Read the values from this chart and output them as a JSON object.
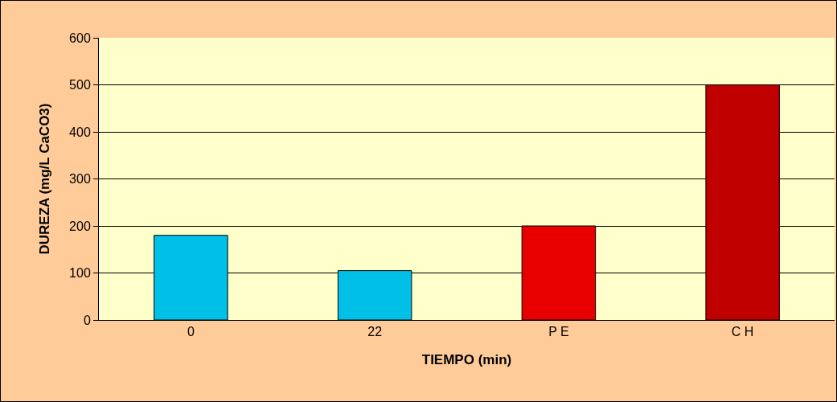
{
  "chart_data": {
    "type": "bar",
    "xlabel": "TIEMPO (min)",
    "ylabel": "DUREZA (mg/L CaCO3)",
    "categories": [
      "0",
      "22",
      "P E",
      "C H"
    ],
    "values": [
      180,
      105,
      200,
      500
    ],
    "colors": [
      "#00c0e8",
      "#00c0e8",
      "#e80000",
      "#c00000"
    ],
    "ylim": [
      0,
      600
    ],
    "yticks": [
      0,
      100,
      200,
      300,
      400,
      500,
      600
    ],
    "grid": "y"
  }
}
